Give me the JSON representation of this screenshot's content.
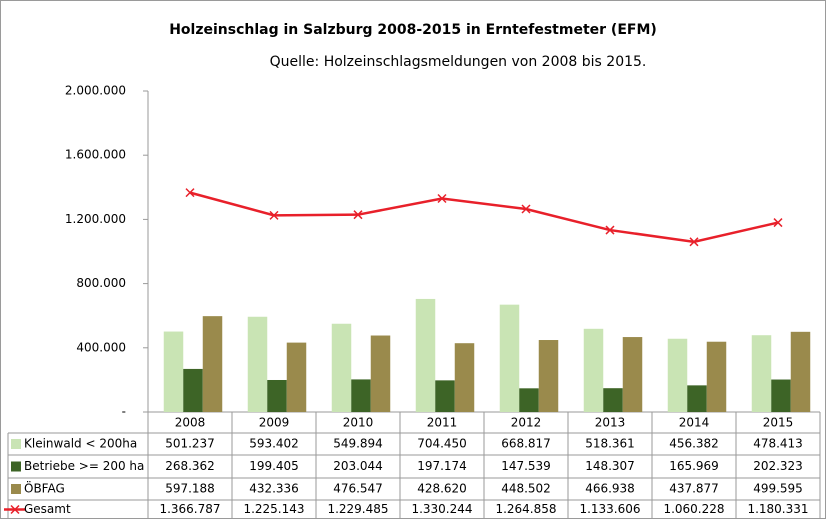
{
  "chart_data": {
    "type": "bar",
    "title": "Holzeinschlag in Salzburg 2008-2015 in Erntefestmeter (EFM)",
    "subtitle": "Quelle: Holzeinschlagsmeldungen von 2008 bis 2015.",
    "categories": [
      "2008",
      "2009",
      "2010",
      "2011",
      "2012",
      "2013",
      "2014",
      "2015"
    ],
    "series": [
      {
        "name": "Kleinwald < 200ha",
        "color": "#c9e4b4",
        "kind": "bar",
        "values": [
          501237,
          593402,
          549894,
          704450,
          668817,
          518361,
          456382,
          478413
        ],
        "value_labels": [
          "501.237",
          "593.402",
          "549.894",
          "704.450",
          "668.817",
          "518.361",
          "456.382",
          "478.413"
        ]
      },
      {
        "name": "Betriebe >= 200 ha",
        "color": "#3d6426",
        "kind": "bar",
        "values": [
          268362,
          199405,
          203044,
          197174,
          147539,
          148307,
          165969,
          202323
        ],
        "value_labels": [
          "268.362",
          "199.405",
          "203.044",
          "197.174",
          "147.539",
          "148.307",
          "165.969",
          "202.323"
        ]
      },
      {
        "name": "ÖBFAG",
        "color": "#9a8a4c",
        "kind": "bar",
        "values": [
          597188,
          432336,
          476547,
          428620,
          448502,
          466938,
          437877,
          499595
        ],
        "value_labels": [
          "597.188",
          "432.336",
          "476.547",
          "428.620",
          "448.502",
          "466.938",
          "437.877",
          "499.595"
        ]
      },
      {
        "name": "Gesamt",
        "color": "#e8202a",
        "kind": "line",
        "values": [
          1366787,
          1225143,
          1229485,
          1330244,
          1264858,
          1133606,
          1060228,
          1180331
        ],
        "value_labels": [
          "1.366.787",
          "1.225.143",
          "1.229.485",
          "1.330.244",
          "1.264.858",
          "1.133.606",
          "1.060.228",
          "1.180.331"
        ]
      }
    ],
    "ylim": [
      0,
      2000000
    ],
    "yticks": [
      {
        "value": 0,
        "label": "-"
      },
      {
        "value": 400000,
        "label": "400.000"
      },
      {
        "value": 800000,
        "label": "800.000"
      },
      {
        "value": 1200000,
        "label": "1.200.000"
      },
      {
        "value": 1600000,
        "label": "1.600.000"
      },
      {
        "value": 2000000,
        "label": "2.000.000"
      }
    ],
    "grid": false
  }
}
